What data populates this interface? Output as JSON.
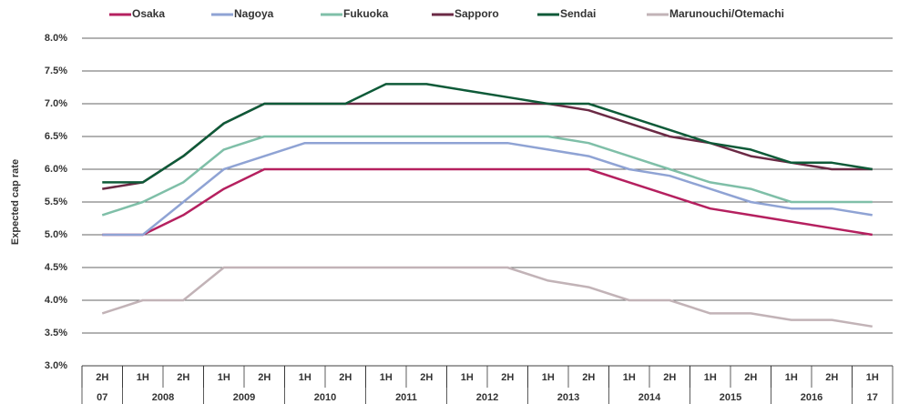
{
  "chart_data": {
    "type": "line",
    "y_label": "Expected cap rate",
    "categories": [
      "2H",
      "1H",
      "2H",
      "1H",
      "2H",
      "1H",
      "2H",
      "1H",
      "2H",
      "1H",
      "2H",
      "1H",
      "2H",
      "1H",
      "2H",
      "1H",
      "2H",
      "1H",
      "2H",
      "1H"
    ],
    "category_groups": [
      {
        "label": "07",
        "size": 1
      },
      {
        "label": "2008",
        "size": 2
      },
      {
        "label": "2009",
        "size": 2
      },
      {
        "label": "2010",
        "size": 2
      },
      {
        "label": "2011",
        "size": 2
      },
      {
        "label": "2012",
        "size": 2
      },
      {
        "label": "2013",
        "size": 2
      },
      {
        "label": "2014",
        "size": 2
      },
      {
        "label": "2015",
        "size": 2
      },
      {
        "label": "2016",
        "size": 2
      },
      {
        "label": "17",
        "size": 1
      }
    ],
    "series": [
      {
        "name": "Osaka",
        "color": "#b5205f",
        "values": [
          5.0,
          5.0,
          5.3,
          5.7,
          6.0,
          6.0,
          6.0,
          6.0,
          6.0,
          6.0,
          6.0,
          6.0,
          6.0,
          5.8,
          5.6,
          5.4,
          5.3,
          5.2,
          5.1,
          5.0
        ]
      },
      {
        "name": "Nagoya",
        "color": "#8fa3d4",
        "values": [
          5.0,
          5.0,
          5.5,
          6.0,
          6.2,
          6.4,
          6.4,
          6.4,
          6.4,
          6.4,
          6.4,
          6.3,
          6.2,
          6.0,
          5.9,
          5.7,
          5.5,
          5.4,
          5.4,
          5.3
        ]
      },
      {
        "name": "Fukuoka",
        "color": "#7fbfa8",
        "values": [
          5.3,
          5.5,
          5.8,
          6.3,
          6.5,
          6.5,
          6.5,
          6.5,
          6.5,
          6.5,
          6.5,
          6.5,
          6.4,
          6.2,
          6.0,
          5.8,
          5.7,
          5.5,
          5.5,
          5.5
        ]
      },
      {
        "name": "Sapporo",
        "color": "#6b2a45",
        "values": [
          5.7,
          5.8,
          6.2,
          6.7,
          7.0,
          7.0,
          7.0,
          7.0,
          7.0,
          7.0,
          7.0,
          7.0,
          6.9,
          6.7,
          6.5,
          6.4,
          6.2,
          6.1,
          6.0,
          6.0
        ]
      },
      {
        "name": "Sendai",
        "color": "#0e5a38",
        "values": [
          5.8,
          5.8,
          6.2,
          6.7,
          7.0,
          7.0,
          7.0,
          7.3,
          7.3,
          7.2,
          7.1,
          7.0,
          7.0,
          6.8,
          6.6,
          6.4,
          6.3,
          6.1,
          6.1,
          6.0
        ]
      },
      {
        "name": "Marunouchi/Otemachi",
        "color": "#c2b3b7",
        "values": [
          3.8,
          4.0,
          4.0,
          4.5,
          4.5,
          4.5,
          4.5,
          4.5,
          4.5,
          4.5,
          4.5,
          4.3,
          4.2,
          4.0,
          4.0,
          3.8,
          3.8,
          3.7,
          3.7,
          3.6
        ]
      }
    ],
    "ylim": [
      3.0,
      8.0
    ],
    "yticks": [
      {
        "value": 3.0,
        "label": "3.0%"
      },
      {
        "value": 3.5,
        "label": "3.5%"
      },
      {
        "value": 4.0,
        "label": "4.0%"
      },
      {
        "value": 4.5,
        "label": "4.5%"
      },
      {
        "value": 5.0,
        "label": "5.0%"
      },
      {
        "value": 5.5,
        "label": "5.5%"
      },
      {
        "value": 6.0,
        "label": "6.0%"
      },
      {
        "value": 6.5,
        "label": "6.5%"
      },
      {
        "value": 7.0,
        "label": "7.0%"
      },
      {
        "value": 7.5,
        "label": "7.5%"
      },
      {
        "value": 8.0,
        "label": "8.0%"
      }
    ],
    "grid": true,
    "legend": "top"
  }
}
